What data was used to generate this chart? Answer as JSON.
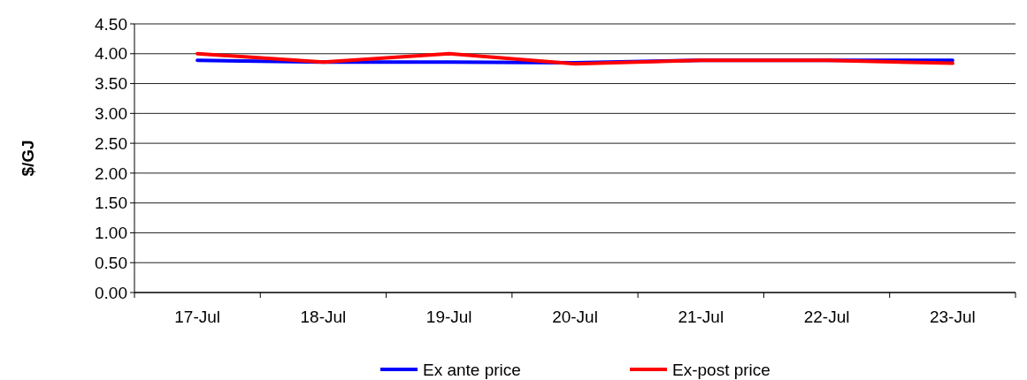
{
  "chart_data": {
    "type": "line",
    "ylabel": "$/GJ",
    "categories": [
      "17-Jul",
      "18-Jul",
      "19-Jul",
      "20-Jul",
      "21-Jul",
      "22-Jul",
      "23-Jul"
    ],
    "series": [
      {
        "name": "Ex ante price",
        "color": "#0000ff",
        "values": [
          3.89,
          3.86,
          3.86,
          3.85,
          3.89,
          3.89,
          3.89
        ]
      },
      {
        "name": "Ex-post price",
        "color": "#ff0000",
        "values": [
          4.0,
          3.86,
          4.0,
          3.83,
          3.89,
          3.89,
          3.84
        ]
      }
    ],
    "ylim": [
      0,
      4.5
    ],
    "yticks": [
      {
        "value": 0,
        "label": "0.00"
      },
      {
        "value": 0.5,
        "label": "0.50"
      },
      {
        "value": 1,
        "label": "1.00"
      },
      {
        "value": 1.5,
        "label": "1.50"
      },
      {
        "value": 2,
        "label": "2.00"
      },
      {
        "value": 2.5,
        "label": "2.50"
      },
      {
        "value": 3,
        "label": "3.00"
      },
      {
        "value": 3.5,
        "label": "3.50"
      },
      {
        "value": 4,
        "label": "4.00"
      },
      {
        "value": 4.5,
        "label": "4.50"
      }
    ],
    "grid": "y",
    "legend": "bottom",
    "marker": "none",
    "line_style": "solid"
  }
}
